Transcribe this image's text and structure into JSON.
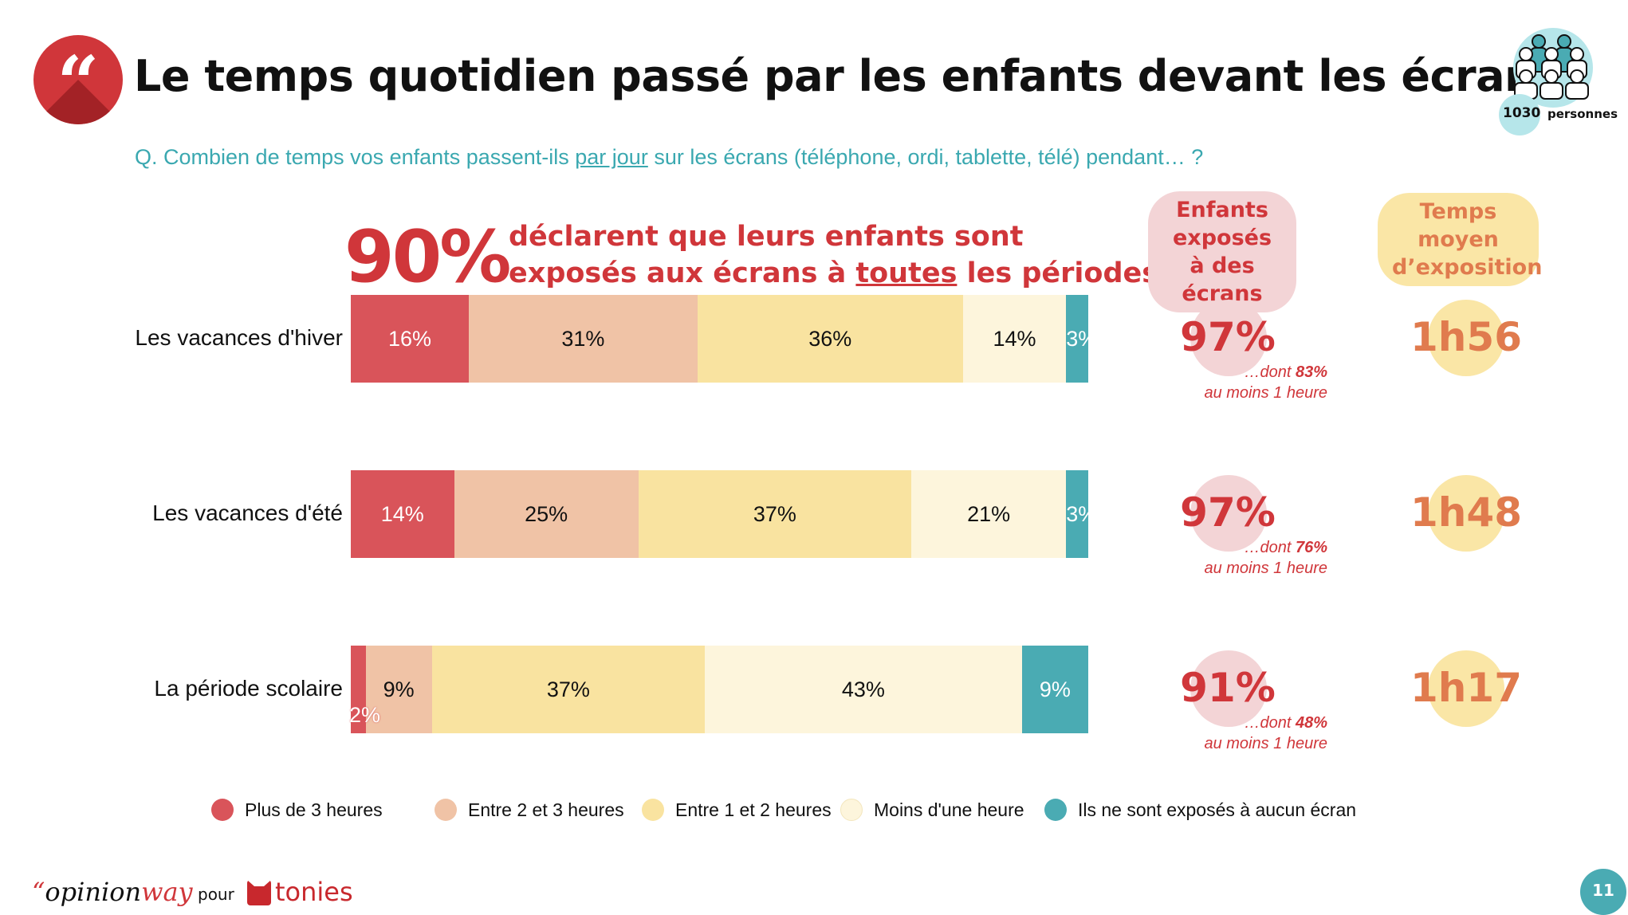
{
  "header": {
    "title": "Le temps quotidien passé par les enfants devant les écrans",
    "quote_glyph": "“",
    "question_pre": "Q. Combien de temps vos enfants passent-ils ",
    "question_underlined": "par jour",
    "question_post": " sur les écrans (téléphone, ordi, tablette, télé) pendant… ?"
  },
  "sample": {
    "count": "1030",
    "label": "personnes",
    "icon": "people-group-icon"
  },
  "highlight": {
    "pct": "90%",
    "line1": "déclarent que leurs enfants sont",
    "line2_pre": "exposés aux écrans à ",
    "line2_underlined": "toutes",
    "line2_post": " les périodes"
  },
  "columns": {
    "exposed_header": "Enfants exposés à des écrans",
    "avg_header": "Temps moyen d’exposition"
  },
  "rows": [
    {
      "exposed": "97%",
      "dont_pre": "…dont ",
      "dont_pct": "83%",
      "dont_post": "au moins 1 heure",
      "avg": "1h56"
    },
    {
      "exposed": "97%",
      "dont_pre": "…dont ",
      "dont_pct": "76%",
      "dont_post": "au moins 1 heure",
      "avg": "1h48"
    },
    {
      "exposed": "91%",
      "dont_pre": "…dont ",
      "dont_pct": "48%",
      "dont_post": "au moins 1 heure",
      "avg": "1h17"
    }
  ],
  "chart_data": {
    "type": "bar",
    "orientation": "horizontal",
    "stacked": true,
    "categories": [
      "Les vacances d'hiver",
      "Les vacances d'été",
      "La période scolaire"
    ],
    "series": [
      {
        "name": "Plus de 3 heures",
        "color": "#d9545a",
        "values": [
          16,
          14,
          2
        ]
      },
      {
        "name": "Entre 2 et 3 heures",
        "color": "#f0c3a6",
        "values": [
          31,
          25,
          9
        ]
      },
      {
        "name": "Entre 1 et 2 heures",
        "color": "#f9e3a0",
        "values": [
          36,
          37,
          37
        ]
      },
      {
        "name": "Moins d'une heure",
        "color": "#fdf5dc",
        "values": [
          14,
          21,
          43
        ]
      },
      {
        "name": "Ils ne sont exposés à aucun écran",
        "color": "#4aabb3",
        "values": [
          3,
          3,
          9
        ]
      }
    ],
    "legend": "bottom"
  },
  "footer": {
    "opinion": "opinion",
    "way": "way",
    "pour": "pour",
    "tonies": "tonies",
    "page": "11"
  }
}
